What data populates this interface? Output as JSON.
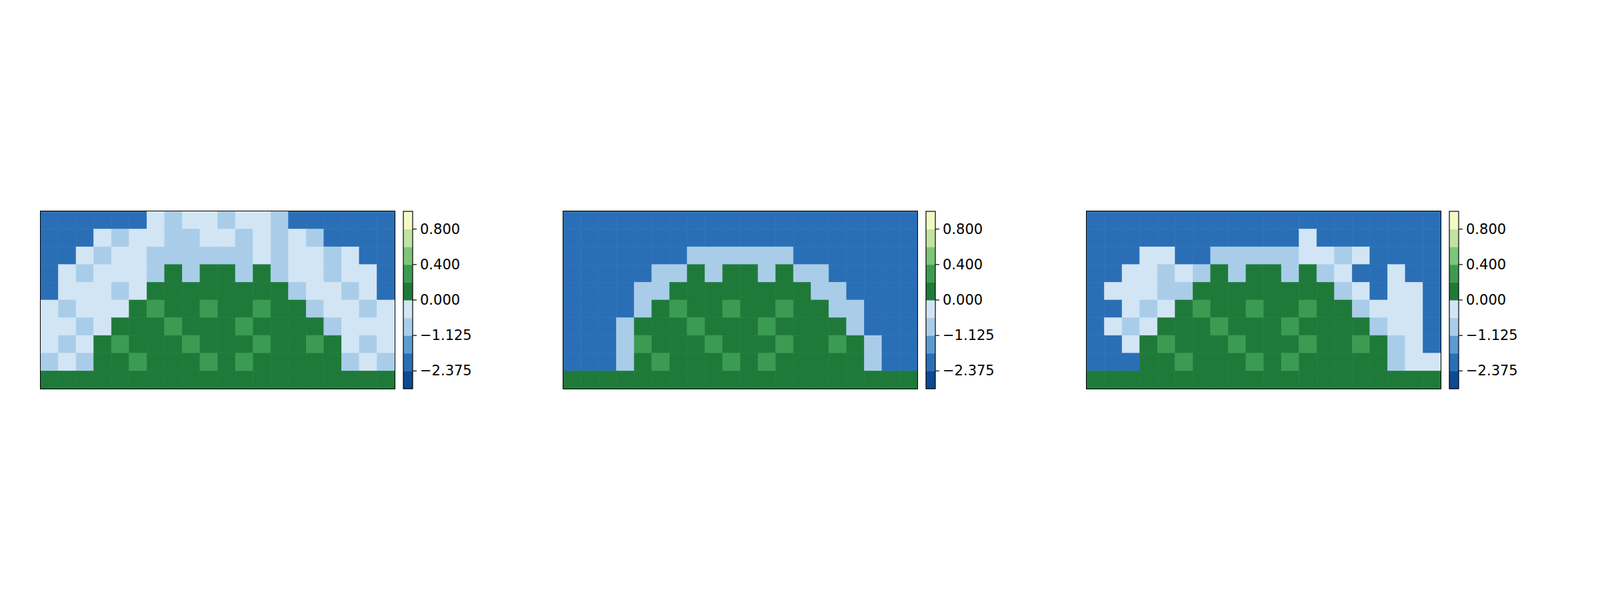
{
  "chart_data": [
    {
      "type": "heatmap",
      "tick_labels": false,
      "values": [
        [
          -2,
          -2,
          -2,
          -2,
          -2,
          -2,
          -0.3,
          -0.8,
          -0.3,
          -0.3,
          -0.8,
          -0.3,
          -0.3,
          -0.8,
          -2,
          -2,
          -2,
          -2,
          -2,
          -2
        ],
        [
          -2,
          -2,
          -2,
          -0.3,
          -0.8,
          -0.3,
          -0.3,
          -0.8,
          -0.8,
          -0.3,
          -0.3,
          -0.8,
          -0.3,
          -0.8,
          -0.3,
          -0.8,
          -2,
          -2,
          -2,
          -2
        ],
        [
          -2,
          -2,
          -0.3,
          -0.8,
          -0.3,
          -0.3,
          -0.8,
          -0.8,
          -0.8,
          -0.8,
          -0.8,
          -0.8,
          -0.3,
          -0.8,
          -0.3,
          -0.3,
          -0.8,
          -0.3,
          -2,
          -2
        ],
        [
          -2,
          -0.3,
          -0.8,
          -0.3,
          -0.3,
          -0.3,
          -0.8,
          0.1,
          -0.8,
          0.1,
          0.1,
          -0.8,
          0.1,
          -0.8,
          -0.3,
          -0.3,
          -0.8,
          -0.3,
          -0.3,
          -2
        ],
        [
          -2,
          -0.3,
          -0.3,
          -0.3,
          -0.8,
          -0.3,
          0.1,
          0.1,
          0.1,
          0.1,
          0.1,
          0.1,
          0.1,
          0.1,
          -0.8,
          -0.3,
          -0.3,
          -0.8,
          -0.3,
          -2
        ],
        [
          -0.3,
          -0.8,
          -0.3,
          -0.3,
          -0.3,
          0.1,
          0.3,
          0.1,
          0.1,
          0.3,
          0.1,
          0.1,
          0.3,
          0.1,
          0.1,
          -0.8,
          -0.3,
          -0.3,
          -0.8,
          -0.3
        ],
        [
          -0.3,
          -0.3,
          -0.8,
          -0.3,
          0.1,
          0.1,
          0.1,
          0.3,
          0.1,
          0.1,
          0.1,
          0.3,
          0.1,
          0.1,
          0.1,
          0.1,
          -0.8,
          -0.3,
          -0.3,
          -0.3
        ],
        [
          -0.3,
          -0.8,
          -0.3,
          0.1,
          0.3,
          0.1,
          0.1,
          0.1,
          0.3,
          0.1,
          0.1,
          0.1,
          0.3,
          0.1,
          0.1,
          0.3,
          0.1,
          -0.3,
          -0.8,
          -0.3
        ],
        [
          -0.8,
          -0.3,
          -0.8,
          0.1,
          0.1,
          0.3,
          0.1,
          0.1,
          0.1,
          0.3,
          0.1,
          0.3,
          0.1,
          0.1,
          0.1,
          0.1,
          0.1,
          -0.8,
          -0.3,
          -0.8
        ],
        [
          0.1,
          0.1,
          0.1,
          0.1,
          0.1,
          0.1,
          0.1,
          0.1,
          0.1,
          0.1,
          0.1,
          0.1,
          0.1,
          0.1,
          0.1,
          0.1,
          0.1,
          0.1,
          0.1,
          0.1
        ]
      ],
      "colorbar": {
        "range": [
          -3.0,
          1.0
        ],
        "boundaries": [
          -3.0,
          -2.375,
          -1.75,
          -1.125,
          -0.5,
          0.0,
          0.2,
          0.4,
          0.6,
          0.8,
          1.0
        ],
        "colors": [
          "#0d4a92",
          "#2a6fb6",
          "#5b9bd0",
          "#a9cde9",
          "#d2e5f4",
          "#1f7a3a",
          "#3c9b52",
          "#7fc47b",
          "#c0e3a2",
          "#f2f9c6"
        ],
        "ticks": [
          {
            "value": 0.8,
            "label": "0.800"
          },
          {
            "value": 0.4,
            "label": "0.400"
          },
          {
            "value": 0.0,
            "label": "0.000"
          },
          {
            "value": -1.125,
            "label": "−1.125"
          },
          {
            "value": -2.375,
            "label": "−2.375"
          }
        ]
      }
    },
    {
      "type": "heatmap",
      "tick_labels": false,
      "values": [
        [
          -2,
          -2,
          -2,
          -2,
          -2,
          -2,
          -2,
          -2,
          -2,
          -2,
          -2,
          -2,
          -2,
          -2,
          -2,
          -2,
          -2,
          -2,
          -2,
          -2
        ],
        [
          -2,
          -2,
          -2,
          -2,
          -2,
          -2,
          -2,
          -2,
          -2,
          -2,
          -2,
          -2,
          -2,
          -2,
          -2,
          -2,
          -2,
          -2,
          -2,
          -2
        ],
        [
          -2,
          -2,
          -2,
          -2,
          -2,
          -2,
          -2,
          -0.8,
          -0.8,
          -0.8,
          -0.8,
          -0.8,
          -0.8,
          -2,
          -2,
          -2,
          -2,
          -2,
          -2,
          -2
        ],
        [
          -2,
          -2,
          -2,
          -2,
          -2,
          -0.8,
          -0.8,
          0.1,
          -0.8,
          0.1,
          0.1,
          -0.8,
          0.1,
          -0.8,
          -0.8,
          -2,
          -2,
          -2,
          -2,
          -2
        ],
        [
          -2,
          -2,
          -2,
          -2,
          -0.8,
          -0.8,
          0.1,
          0.1,
          0.1,
          0.1,
          0.1,
          0.1,
          0.1,
          0.1,
          -0.8,
          -0.8,
          -2,
          -2,
          -2,
          -2
        ],
        [
          -2,
          -2,
          -2,
          -2,
          -0.8,
          0.1,
          0.3,
          0.1,
          0.1,
          0.3,
          0.1,
          0.1,
          0.3,
          0.1,
          0.1,
          -0.8,
          -0.8,
          -2,
          -2,
          -2
        ],
        [
          -2,
          -2,
          -2,
          -0.8,
          0.1,
          0.1,
          0.1,
          0.3,
          0.1,
          0.1,
          0.1,
          0.3,
          0.1,
          0.1,
          0.1,
          0.1,
          -0.8,
          -2,
          -2,
          -2
        ],
        [
          -2,
          -2,
          -2,
          -0.8,
          0.3,
          0.1,
          0.1,
          0.1,
          0.3,
          0.1,
          0.1,
          0.1,
          0.3,
          0.1,
          0.1,
          0.3,
          0.1,
          -0.8,
          -2,
          -2
        ],
        [
          -2,
          -2,
          -2,
          -0.8,
          0.1,
          0.3,
          0.1,
          0.1,
          0.1,
          0.3,
          0.1,
          0.3,
          0.1,
          0.1,
          0.1,
          0.1,
          0.1,
          -0.8,
          -2,
          -2
        ],
        [
          0.1,
          0.1,
          0.1,
          0.1,
          0.1,
          0.1,
          0.1,
          0.1,
          0.1,
          0.1,
          0.1,
          0.1,
          0.1,
          0.1,
          0.1,
          0.1,
          0.1,
          0.1,
          0.1,
          0.1
        ]
      ],
      "colorbar": {
        "range": [
          -3.0,
          1.0
        ],
        "boundaries": [
          -3.0,
          -2.375,
          -1.75,
          -1.125,
          -0.5,
          0.0,
          0.2,
          0.4,
          0.6,
          0.8,
          1.0
        ],
        "colors": [
          "#0d4a92",
          "#2a6fb6",
          "#5b9bd0",
          "#a9cde9",
          "#d2e5f4",
          "#1f7a3a",
          "#3c9b52",
          "#7fc47b",
          "#c0e3a2",
          "#f2f9c6"
        ],
        "ticks": [
          {
            "value": 0.8,
            "label": "0.800"
          },
          {
            "value": 0.4,
            "label": "0.400"
          },
          {
            "value": 0.0,
            "label": "0.000"
          },
          {
            "value": -1.125,
            "label": "−1.125"
          },
          {
            "value": -2.375,
            "label": "−2.375"
          }
        ]
      }
    },
    {
      "type": "heatmap",
      "tick_labels": false,
      "values": [
        [
          -2,
          -2,
          -2,
          -2,
          -2,
          -2,
          -2,
          -2,
          -2,
          -2,
          -2,
          -2,
          -2,
          -2,
          -2,
          -2,
          -2,
          -2,
          -2,
          -2
        ],
        [
          -2,
          -2,
          -2,
          -2,
          -2,
          -2,
          -2,
          -2,
          -2,
          -2,
          -2,
          -2,
          -0.3,
          -2,
          -2,
          -2,
          -2,
          -2,
          -2,
          -2
        ],
        [
          -2,
          -2,
          -2,
          -0.3,
          -0.3,
          -2,
          -2,
          -0.8,
          -0.8,
          -0.8,
          -0.8,
          -0.8,
          -0.3,
          -0.3,
          -0.8,
          -0.3,
          -2,
          -2,
          -2,
          -2
        ],
        [
          -2,
          -2,
          -0.3,
          -0.3,
          -0.8,
          -0.3,
          -0.8,
          0.1,
          -0.8,
          0.1,
          0.1,
          -0.8,
          0.1,
          -0.8,
          -0.3,
          -2,
          -2,
          -0.3,
          -2,
          -2
        ],
        [
          -2,
          -0.3,
          -0.3,
          -0.3,
          -0.8,
          -0.8,
          0.1,
          0.1,
          0.1,
          0.1,
          0.1,
          0.1,
          0.1,
          0.1,
          -0.8,
          -0.3,
          -2,
          -0.3,
          -0.3,
          -2
        ],
        [
          -2,
          -2,
          -0.3,
          -0.8,
          -0.3,
          0.1,
          0.3,
          0.1,
          0.1,
          0.3,
          0.1,
          0.1,
          0.3,
          0.1,
          0.1,
          -0.8,
          -0.3,
          -0.3,
          -0.3,
          -2
        ],
        [
          -2,
          -0.3,
          -0.8,
          -0.3,
          0.1,
          0.1,
          0.1,
          0.3,
          0.1,
          0.1,
          0.1,
          0.3,
          0.1,
          0.1,
          0.1,
          0.1,
          -0.8,
          -0.3,
          -0.3,
          -2
        ],
        [
          -2,
          -2,
          -0.3,
          0.1,
          0.3,
          0.1,
          0.1,
          0.1,
          0.3,
          0.1,
          0.1,
          0.1,
          0.3,
          0.1,
          0.1,
          0.3,
          0.1,
          -0.8,
          -0.3,
          -2
        ],
        [
          -2,
          -2,
          -2,
          0.1,
          0.1,
          0.3,
          0.1,
          0.1,
          0.1,
          0.3,
          0.1,
          0.3,
          0.1,
          0.1,
          0.1,
          0.1,
          0.1,
          -0.8,
          -0.3,
          -0.3
        ],
        [
          0.1,
          0.1,
          0.1,
          0.1,
          0.1,
          0.1,
          0.1,
          0.1,
          0.1,
          0.1,
          0.1,
          0.1,
          0.1,
          0.1,
          0.1,
          0.1,
          0.1,
          0.1,
          0.1,
          0.1
        ]
      ],
      "colorbar": {
        "range": [
          -3.0,
          1.0
        ],
        "boundaries": [
          -3.0,
          -2.375,
          -1.75,
          -1.125,
          -0.5,
          0.0,
          0.2,
          0.4,
          0.6,
          0.8,
          1.0
        ],
        "colors": [
          "#0d4a92",
          "#2a6fb6",
          "#5b9bd0",
          "#a9cde9",
          "#d2e5f4",
          "#1f7a3a",
          "#3c9b52",
          "#7fc47b",
          "#c0e3a2",
          "#f2f9c6"
        ],
        "ticks": [
          {
            "value": 0.8,
            "label": "0.800"
          },
          {
            "value": 0.4,
            "label": "0.400"
          },
          {
            "value": 0.0,
            "label": "0.000"
          },
          {
            "value": -1.125,
            "label": "−1.125"
          },
          {
            "value": -2.375,
            "label": "−2.375"
          }
        ]
      }
    }
  ]
}
